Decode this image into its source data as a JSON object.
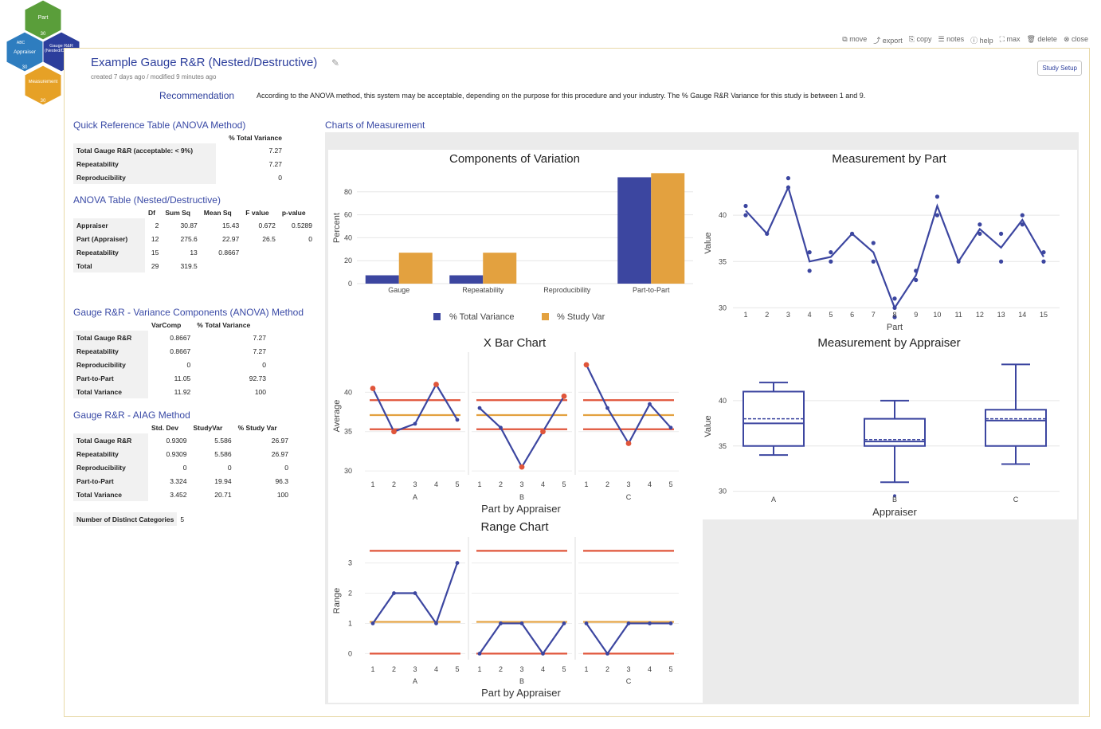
{
  "hexes": [
    {
      "label": "Part",
      "count": "30",
      "color": "#5a9e3a"
    },
    {
      "label": "Appraiser",
      "count": "30",
      "color": "#2e7dbf"
    },
    {
      "label": "Gauge R&R (Nested/Destructive)",
      "count": "",
      "color": "#2c3e9c"
    },
    {
      "label": "Measurement",
      "count": "30",
      "color": "#e6a126"
    }
  ],
  "hex_tags": {
    "abc": "ABC"
  },
  "toolbar": {
    "move": "move",
    "export": "export",
    "copy": "copy",
    "notes": "notes",
    "help": "help",
    "max": "max",
    "delete": "delete",
    "close": "close"
  },
  "header": {
    "title": "Example Gauge R&R (Nested/Destructive)",
    "meta": "created 7 days ago / modified 9 minutes ago",
    "study_setup": "Study Setup"
  },
  "recommendation": {
    "label": "Recommendation",
    "text": "According to the ANOVA method, this system may be acceptable, depending on the purpose for this procedure and your industry. The % Gauge R&R Variance for this study is between 1 and 9."
  },
  "quick_ref": {
    "title": "Quick Reference Table (ANOVA Method)",
    "header": "% Total Variance",
    "rows": [
      {
        "label": "Total Gauge R&R (acceptable: < 9%)",
        "value": "7.27"
      },
      {
        "label": "Repeatability",
        "value": "7.27"
      },
      {
        "label": "Reproducibility",
        "value": "0"
      }
    ]
  },
  "anova": {
    "title": "ANOVA Table (Nested/Destructive)",
    "headers": [
      "Df",
      "Sum Sq",
      "Mean Sq",
      "F value",
      "p-value"
    ],
    "rows": [
      {
        "label": "Appraiser",
        "cells": [
          "2",
          "30.87",
          "15.43",
          "0.672",
          "0.5289"
        ]
      },
      {
        "label": "Part (Appraiser)",
        "cells": [
          "12",
          "275.6",
          "22.97",
          "26.5",
          "0"
        ]
      },
      {
        "label": "Repeatability",
        "cells": [
          "15",
          "13",
          "0.8667",
          "",
          ""
        ]
      },
      {
        "label": "Total",
        "cells": [
          "29",
          "319.5",
          "",
          "",
          ""
        ]
      }
    ]
  },
  "varcomp": {
    "title": "Gauge R&R - Variance Components (ANOVA) Method",
    "headers": [
      "VarComp",
      "% Total Variance"
    ],
    "rows": [
      {
        "label": "Total Gauge R&R",
        "cells": [
          "0.8667",
          "7.27"
        ]
      },
      {
        "label": "Repeatability",
        "cells": [
          "0.8667",
          "7.27"
        ]
      },
      {
        "label": "Reproducibility",
        "cells": [
          "0",
          "0"
        ]
      },
      {
        "label": "Part-to-Part",
        "cells": [
          "11.05",
          "92.73"
        ]
      },
      {
        "label": "Total Variance",
        "cells": [
          "11.92",
          "100"
        ]
      }
    ]
  },
  "aiag": {
    "title": "Gauge R&R - AIAG Method",
    "headers": [
      "Std. Dev",
      "StudyVar",
      "% Study Var"
    ],
    "rows": [
      {
        "label": "Total Gauge R&R",
        "cells": [
          "0.9309",
          "5.586",
          "26.97"
        ]
      },
      {
        "label": "Repeatability",
        "cells": [
          "0.9309",
          "5.586",
          "26.97"
        ]
      },
      {
        "label": "Reproducibility",
        "cells": [
          "0",
          "0",
          "0"
        ]
      },
      {
        "label": "Part-to-Part",
        "cells": [
          "3.324",
          "19.94",
          "96.3"
        ]
      },
      {
        "label": "Total Variance",
        "cells": [
          "3.452",
          "20.71",
          "100"
        ]
      }
    ]
  },
  "ndc": {
    "label": "Number of Distinct Categories",
    "value": "5"
  },
  "charts_title": "Charts of Measurement",
  "colors": {
    "blue": "#3c46a0",
    "orange": "#e3a13f",
    "red": "#e0553a",
    "accent": "#2c3e9c"
  },
  "chart_data": [
    {
      "type": "bar",
      "title": "Components of Variation",
      "categories": [
        "Gauge",
        "Repeatability",
        "Reproducibility",
        "Part-to-Part"
      ],
      "series": [
        {
          "name": "% Total Variance",
          "values": [
            7.27,
            7.27,
            0,
            92.73
          ]
        },
        {
          "name": "% Study Var",
          "values": [
            26.97,
            26.97,
            0,
            96.3
          ]
        }
      ],
      "ylabel": "Percent",
      "ylim": [
        0,
        100
      ],
      "yticks": [
        0,
        20,
        40,
        60,
        80
      ]
    },
    {
      "type": "scatter",
      "title": "Measurement by Part",
      "xlabel": "Part",
      "ylabel": "Value",
      "x": [
        1,
        2,
        3,
        4,
        5,
        6,
        7,
        8,
        9,
        10,
        11,
        12,
        13,
        14,
        15
      ],
      "line": [
        40.5,
        38,
        43,
        35,
        35.5,
        38,
        36,
        30,
        33.5,
        41,
        35,
        38.5,
        36.5,
        39.5,
        35.5
      ],
      "points": [
        [
          1,
          41
        ],
        [
          1,
          40
        ],
        [
          2,
          38
        ],
        [
          3,
          44
        ],
        [
          3,
          43
        ],
        [
          4,
          36
        ],
        [
          4,
          34
        ],
        [
          5,
          36
        ],
        [
          5,
          35
        ],
        [
          6,
          38
        ],
        [
          7,
          37
        ],
        [
          7,
          35
        ],
        [
          8,
          31
        ],
        [
          8,
          30
        ],
        [
          8,
          29
        ],
        [
          9,
          34
        ],
        [
          9,
          33
        ],
        [
          10,
          42
        ],
        [
          10,
          40
        ],
        [
          11,
          35
        ],
        [
          12,
          39
        ],
        [
          12,
          38
        ],
        [
          13,
          38
        ],
        [
          13,
          35
        ],
        [
          14,
          40
        ],
        [
          14,
          39
        ],
        [
          15,
          36
        ],
        [
          15,
          35
        ]
      ],
      "yticks": [
        30,
        35,
        40
      ],
      "ylim": [
        29,
        45
      ]
    },
    {
      "type": "line",
      "title": "X Bar Chart",
      "xlabel": "Part by Appraiser",
      "ylabel": "Average",
      "panels": [
        {
          "name": "A",
          "values": [
            40.5,
            35,
            36,
            41,
            36.5
          ],
          "out": [
            true,
            true,
            false,
            true,
            false
          ]
        },
        {
          "name": "B",
          "values": [
            38,
            35.5,
            30.5,
            35,
            39.5
          ],
          "out": [
            false,
            false,
            true,
            true,
            true
          ]
        },
        {
          "name": "C",
          "values": [
            43.5,
            38,
            33.5,
            38.5,
            35.5
          ],
          "out": [
            true,
            false,
            true,
            false,
            false
          ]
        }
      ],
      "x": [
        "1",
        "2",
        "3",
        "4",
        "5"
      ],
      "ucl": 39,
      "center": 37.1,
      "lcl": 35.3,
      "yticks": [
        30,
        35,
        40
      ],
      "ylim": [
        29.5,
        44.5
      ]
    },
    {
      "type": "box",
      "title": "Measurement by Appraiser",
      "xlabel": "Appraiser",
      "ylabel": "Value",
      "categories": [
        "A",
        "B",
        "C"
      ],
      "boxes": [
        {
          "min": 34,
          "q1": 35,
          "median": 37.5,
          "mean": 38,
          "q3": 41,
          "max": 42
        },
        {
          "min": 31,
          "q1": 35,
          "median": 35.5,
          "mean": 35.7,
          "q3": 38,
          "max": 40,
          "outlier": 29.5
        },
        {
          "min": 33,
          "q1": 35,
          "median": 37.8,
          "mean": 38,
          "q3": 39,
          "max": 44
        }
      ],
      "yticks": [
        30,
        35,
        40
      ],
      "ylim": [
        29,
        45
      ]
    },
    {
      "type": "line",
      "title": "Range Chart",
      "xlabel": "Part by Appraiser",
      "ylabel": "Range",
      "panels": [
        {
          "name": "A",
          "values": [
            1,
            2,
            2,
            1,
            3
          ]
        },
        {
          "name": "B",
          "values": [
            0,
            1,
            1,
            0,
            1
          ]
        },
        {
          "name": "C",
          "values": [
            1,
            0,
            1,
            1,
            1
          ]
        }
      ],
      "x": [
        "1",
        "2",
        "3",
        "4",
        "5"
      ],
      "ucl": 3.4,
      "center": 1.05,
      "lcl": 0,
      "yticks": [
        0,
        1,
        2,
        3
      ],
      "ylim": [
        -0.2,
        3.7
      ]
    }
  ]
}
